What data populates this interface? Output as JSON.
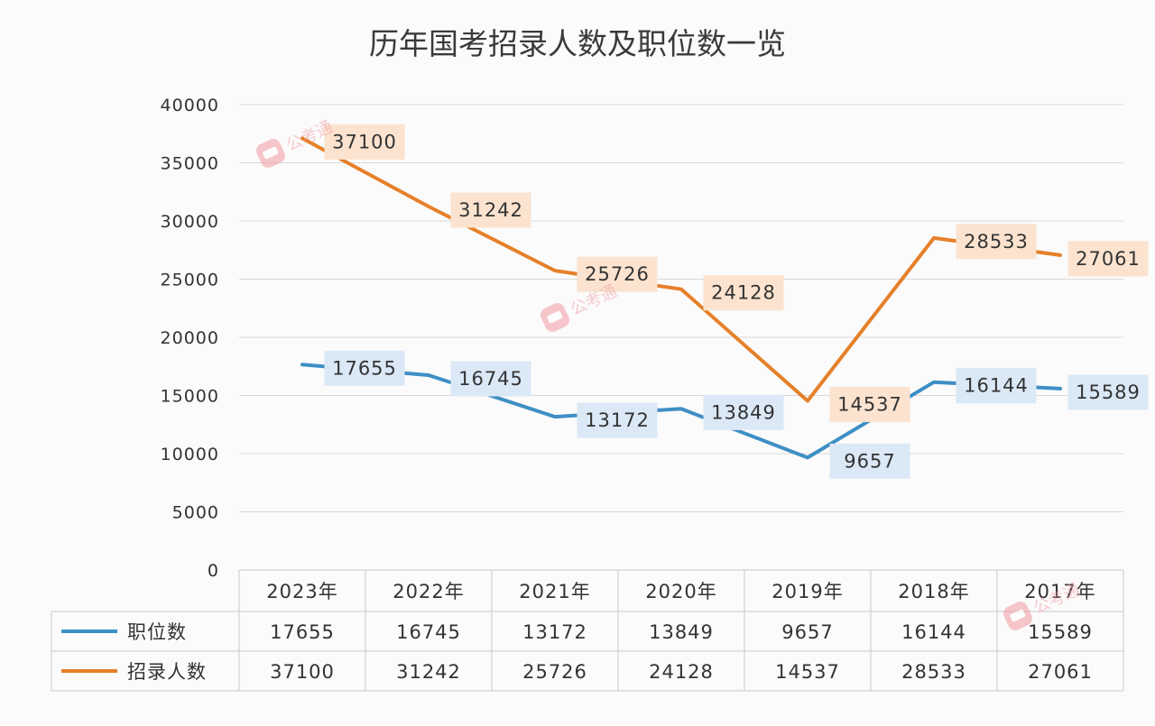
{
  "chart_data": {
    "type": "line",
    "title": "历年国考招录人数及职位数一览",
    "categories": [
      "2023年",
      "2022年",
      "2021年",
      "2020年",
      "2019年",
      "2018年",
      "2017年"
    ],
    "ylim": [
      0,
      40000
    ],
    "yticks": [
      0,
      5000,
      10000,
      15000,
      20000,
      25000,
      30000,
      35000,
      40000
    ],
    "grid": true,
    "legend": "table-left",
    "series": [
      {
        "name": "职位数",
        "color": "#3e8fc4",
        "label_bg": "#dbe8f6",
        "values": [
          17655,
          16745,
          13172,
          13849,
          9657,
          16144,
          15589
        ]
      },
      {
        "name": "招录人数",
        "color": "#e5802a",
        "label_bg": "#fbe3cf",
        "values": [
          37100,
          31242,
          25726,
          24128,
          14537,
          28533,
          27061
        ]
      }
    ]
  },
  "watermark": {
    "text": "公考通",
    "icon": "chat-bubble-logo",
    "color": "#f09aa2"
  }
}
